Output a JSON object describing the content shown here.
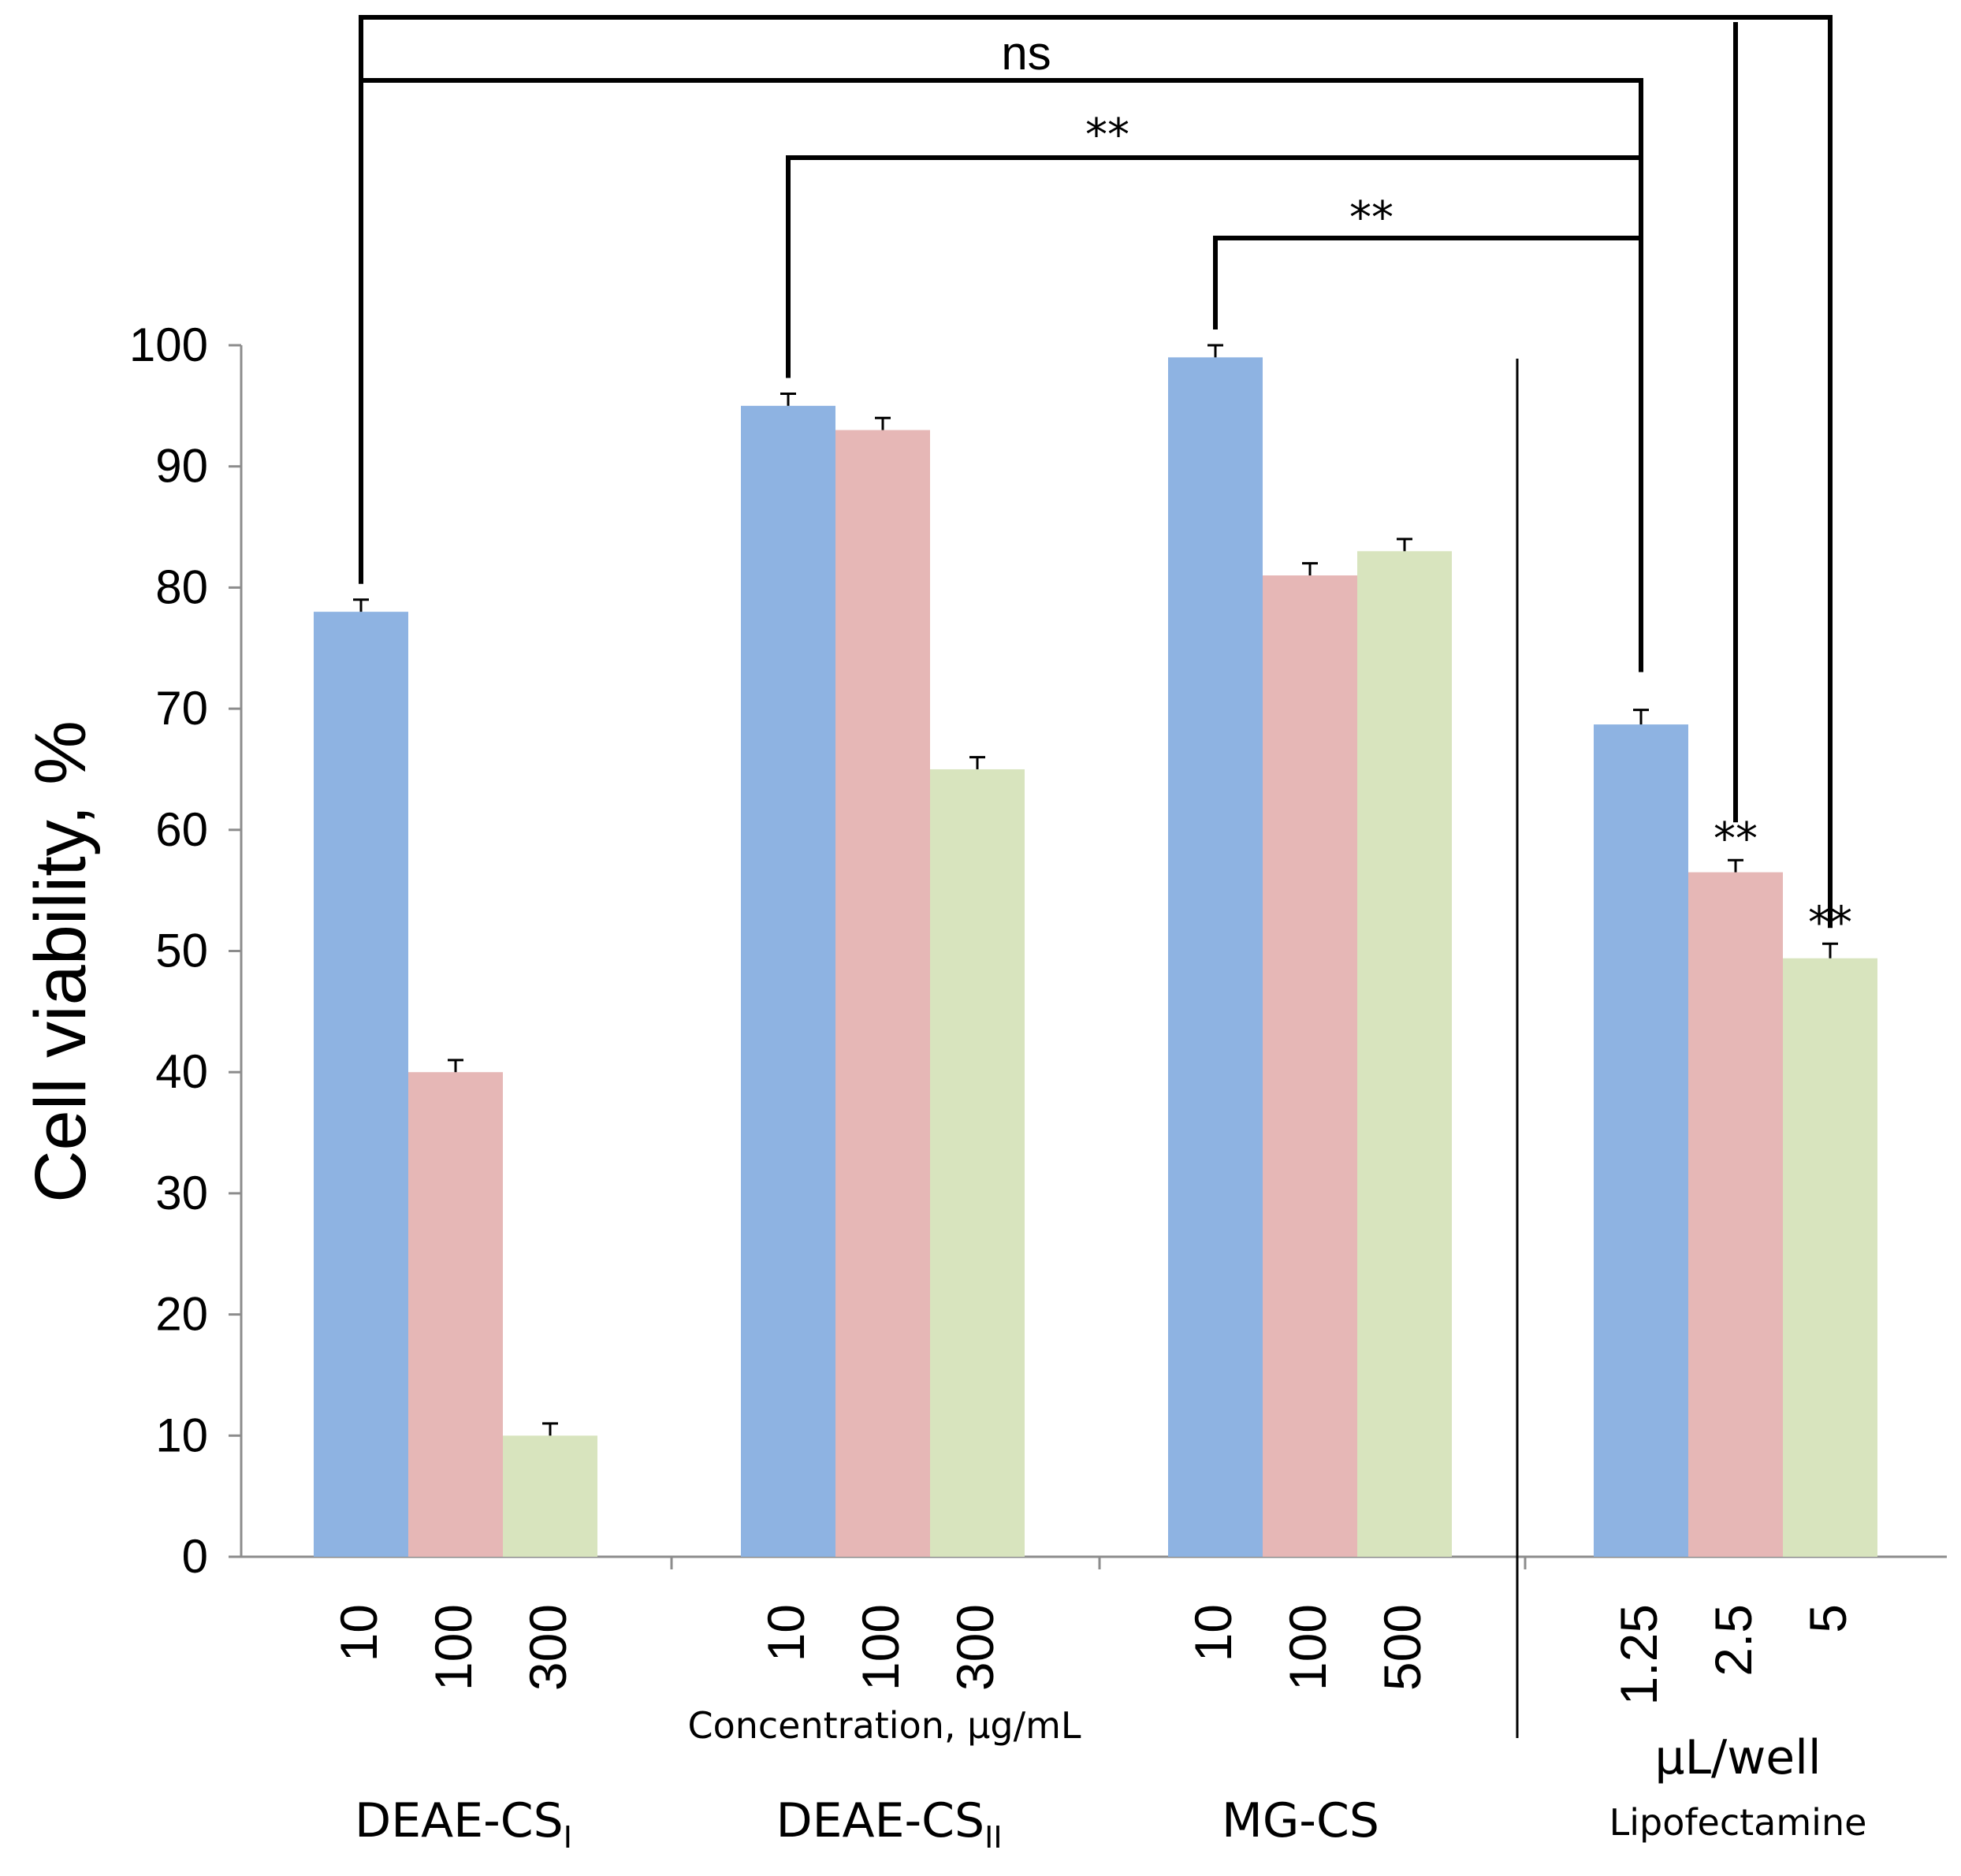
{
  "chart_data": {
    "type": "bar",
    "ylabel": "Cell viability, %",
    "ylim": [
      0,
      100
    ],
    "yticks": [
      0,
      10,
      20,
      30,
      40,
      50,
      60,
      70,
      80,
      90,
      100
    ],
    "xlabel_center": "Concentration, μg/mL",
    "xlabel_right": "μL/well",
    "colors": [
      "#8EB3E2",
      "#E6B7B6",
      "#D8E4BE"
    ],
    "groups": [
      {
        "name": "DEAE-CS",
        "subscript": "I",
        "categories": [
          "10",
          "100",
          "300"
        ],
        "values": [
          78,
          40,
          10
        ],
        "errors": [
          1,
          1,
          1
        ]
      },
      {
        "name": "DEAE-CS",
        "subscript": "II",
        "categories": [
          "10",
          "100",
          "300"
        ],
        "values": [
          95,
          93,
          65
        ],
        "errors": [
          1,
          1,
          1
        ]
      },
      {
        "name": "MG-CS",
        "subscript": "",
        "categories": [
          "10",
          "100",
          "500"
        ],
        "values": [
          99,
          81,
          83
        ],
        "errors": [
          1,
          1,
          1
        ]
      },
      {
        "name": "Lipofectamine",
        "subscript": "",
        "categories": [
          "1.25",
          "2.5",
          "5"
        ],
        "values": [
          68.7,
          56.5,
          49.4
        ],
        "errors": [
          1.2,
          1,
          1.2
        ]
      }
    ],
    "annotations": [
      {
        "text": "ns",
        "type": "bracket"
      },
      {
        "text": "**",
        "type": "bracket"
      },
      {
        "text": "**",
        "type": "bracket"
      },
      {
        "text": "**",
        "type": "bar-label"
      },
      {
        "text": "**",
        "type": "bar-label"
      }
    ]
  }
}
